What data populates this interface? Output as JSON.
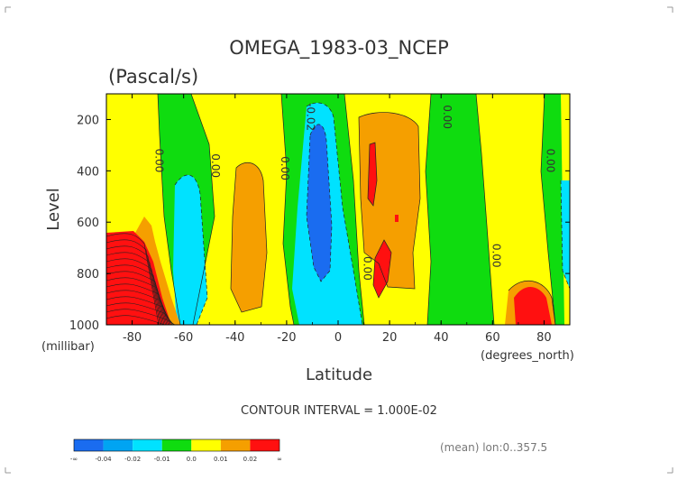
{
  "chart_data": {
    "type": "heatmap",
    "title": "OMEGA_1983-03_NCEP",
    "units": "(Pascal/s)",
    "xlabel": "Latitude",
    "ylabel": "Level",
    "x_unit": "(degrees_north)",
    "y_unit": "(millibar)",
    "xlim": [
      -90,
      90
    ],
    "ylim": [
      1000,
      100
    ],
    "x_ticks": [
      -80,
      -60,
      -40,
      -20,
      0,
      20,
      40,
      60,
      80
    ],
    "y_ticks": [
      200,
      400,
      600,
      800,
      1000
    ],
    "contour_interval_text": "CONTOUR INTERVAL = 1.000E-02",
    "mean_text": "(mean) lon:0..357.5",
    "contour_labels": [
      {
        "text": "0.00",
        "lat": -71,
        "lev": 360
      },
      {
        "text": "0.00",
        "lat": -49,
        "lev": 380
      },
      {
        "text": "0.00",
        "lat": -22,
        "lev": 390
      },
      {
        "text": "-0.02",
        "lat": -12,
        "lev": 190
      },
      {
        "text": "0.00",
        "lat": 41,
        "lev": 190
      },
      {
        "text": "0.00",
        "lat": 10,
        "lev": 780
      },
      {
        "text": "0.00",
        "lat": 60,
        "lev": 730
      },
      {
        "text": "0.00",
        "lat": 81,
        "lev": 360
      }
    ],
    "legend": {
      "labels": [
        "-∞",
        "-0.04",
        "-0.02",
        "-0.01",
        "0.0",
        "0.01",
        "0.02",
        "∞"
      ],
      "colors": [
        "#1a6cf0",
        "#00a4f2",
        "#00e2ff",
        "#0fdc0f",
        "#ffff00",
        "#f59f00",
        "#ff1010"
      ]
    },
    "colors": {
      "neg_strong": "#1a6cf0",
      "neg_mid": "#00a4f2",
      "neg_weak": "#00e2ff",
      "near_zero": "#0fdc0f",
      "pos_weak": "#ffff00",
      "pos_mid": "#f59f00",
      "pos_strong": "#ff1010"
    }
  }
}
